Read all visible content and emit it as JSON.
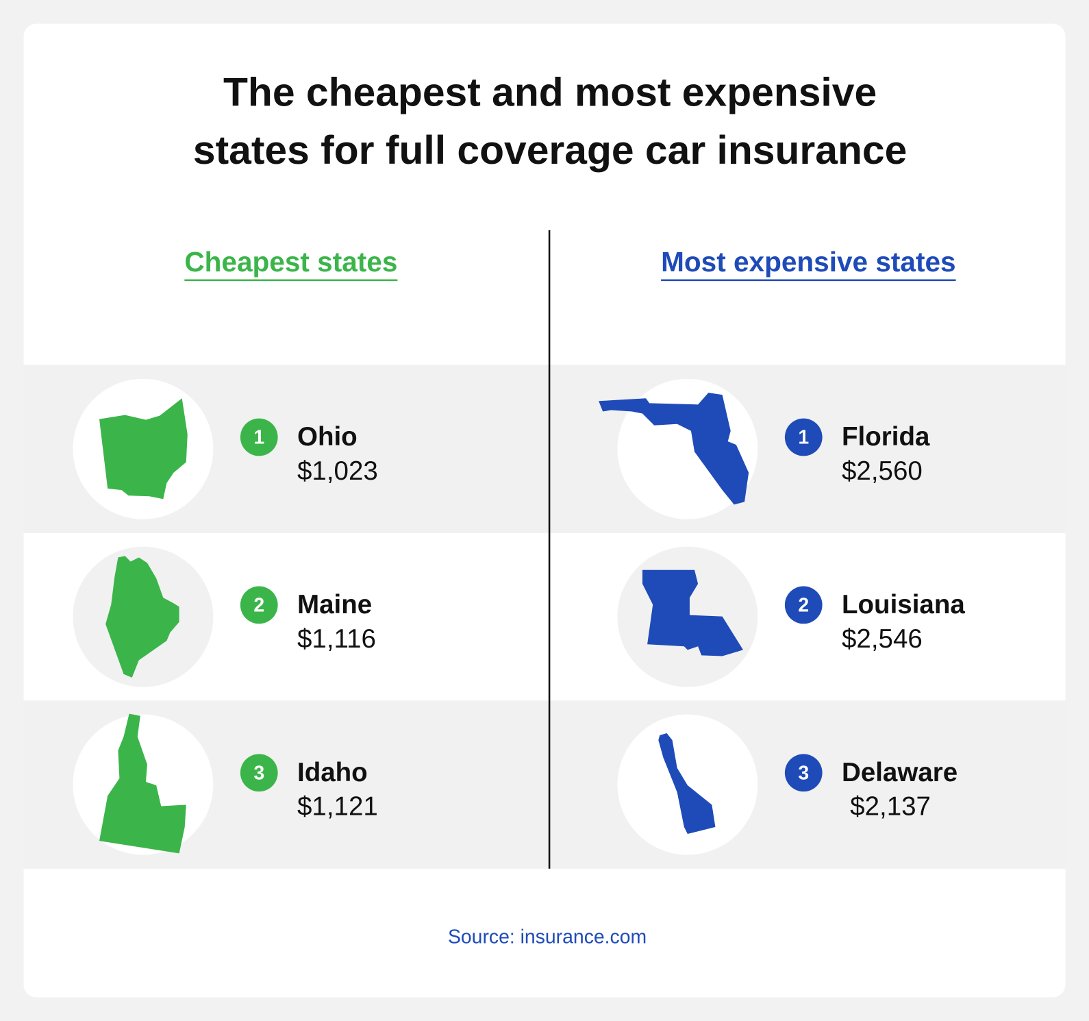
{
  "header": {
    "title": [
      "The cheapest and most expensive",
      "states for full coverage car insurance"
    ]
  },
  "columns": [
    {
      "heading": "Cheapest states",
      "color": "#3bb54a",
      "items": [
        {
          "rank": "1",
          "state": "Ohio",
          "price": "$1,023"
        },
        {
          "rank": "2",
          "state": "Maine",
          "price": "$1,116"
        },
        {
          "rank": "3",
          "state": "Idaho",
          "price": "$1,121"
        }
      ]
    },
    {
      "heading": "Most expensive states",
      "color": "#1e4bb8",
      "items": [
        {
          "rank": "1",
          "state": "Florida",
          "price": "$2,560"
        },
        {
          "rank": "2",
          "state": "Louisiana",
          "price": "$2,546"
        },
        {
          "rank": "3",
          "state": "Delaware",
          "price": "$2,137"
        }
      ]
    }
  ],
  "footer": {
    "source": "Source: insurance.com"
  }
}
